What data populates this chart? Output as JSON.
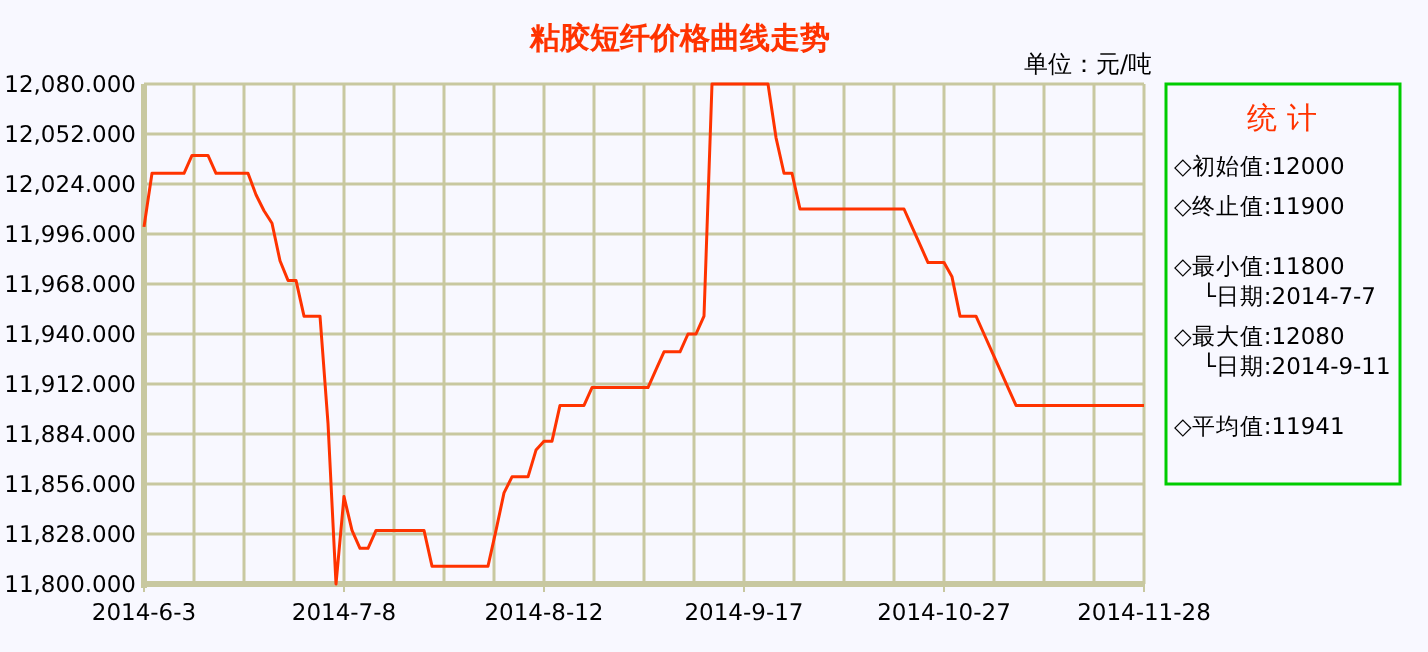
{
  "chart_data": {
    "type": "line",
    "title": "粘胶短纤价格曲线走势",
    "ylabel": "单位：元/吨",
    "categories": [
      "2014-6-3",
      null,
      null,
      null,
      null,
      null,
      null,
      null,
      null,
      null,
      null,
      null,
      null,
      null,
      null,
      null,
      null,
      null,
      null,
      null,
      null,
      null,
      null,
      null,
      null,
      "2014-7-8",
      null,
      null,
      null,
      null,
      null,
      null,
      null,
      null,
      null,
      null,
      null,
      null,
      null,
      null,
      null,
      null,
      null,
      null,
      null,
      null,
      null,
      null,
      null,
      null,
      "2014-8-12",
      null,
      null,
      null,
      null,
      null,
      null,
      null,
      null,
      null,
      null,
      null,
      null,
      null,
      null,
      null,
      null,
      null,
      null,
      null,
      null,
      null,
      null,
      null,
      null,
      "2014-9-17",
      null,
      null,
      null,
      null,
      null,
      null,
      null,
      null,
      null,
      null,
      null,
      null,
      null,
      null,
      null,
      null,
      null,
      null,
      null,
      null,
      null,
      null,
      null,
      null,
      "2014-10-27",
      null,
      null,
      null,
      null,
      null,
      null,
      null,
      null,
      null,
      null,
      null,
      null,
      null,
      null,
      null,
      null,
      null,
      null,
      null,
      null,
      null,
      null,
      null,
      null,
      "2014-11-28"
    ],
    "series": [
      {
        "color": "#ff3300",
        "values": [
          12000,
          12030,
          12030,
          12030,
          12030,
          12030,
          12040,
          12040,
          12040,
          12030,
          12030,
          12030,
          12030,
          12030,
          12018,
          12009,
          12002,
          11981,
          11970,
          11970,
          11950,
          11950,
          11950,
          11890,
          11800,
          11849,
          11830,
          11820,
          11820,
          11830,
          11830,
          11830,
          11830,
          11830,
          11830,
          11830,
          11810,
          11810,
          11810,
          11810,
          11810,
          11810,
          11810,
          11810,
          11830,
          11851,
          11860,
          11860,
          11860,
          11875,
          11880,
          11880,
          11900,
          11900,
          11900,
          11900,
          11910,
          11910,
          11910,
          11910,
          11910,
          11910,
          11910,
          11910,
          11920,
          11930,
          11930,
          11930,
          11940,
          11940,
          11950,
          12080,
          12080,
          12080,
          12080,
          12080,
          12080,
          12080,
          12080,
          12050,
          12030,
          12030,
          12010,
          12010,
          12010,
          12010,
          12010,
          12010,
          12010,
          12010,
          12010,
          12010,
          12010,
          12010,
          12010,
          12010,
          12000,
          11990,
          11980,
          11980,
          11980,
          11972,
          11950,
          11950,
          11950,
          11940,
          11930,
          11920,
          11910,
          11900,
          11900,
          11900,
          11900,
          11900,
          11900,
          11900,
          11900,
          11900,
          11900,
          11900,
          11900,
          11900,
          11900,
          11900,
          11900,
          11900
        ]
      }
    ],
    "ylim": [
      11800,
      12080
    ],
    "yticks": [
      {
        "value": 11800,
        "label": "11,800.000"
      },
      {
        "value": 11828,
        "label": "11,828.000"
      },
      {
        "value": 11856,
        "label": "11,856.000"
      },
      {
        "value": 11884,
        "label": "11,884.000"
      },
      {
        "value": 11912,
        "label": "11,912.000"
      },
      {
        "value": 11940,
        "label": "11,940.000"
      },
      {
        "value": 11968,
        "label": "11,968.000"
      },
      {
        "value": 11996,
        "label": "11,996.000"
      },
      {
        "value": 12024,
        "label": "12,024.000"
      },
      {
        "value": 12052,
        "label": "12,052.000"
      },
      {
        "value": 12080,
        "label": "12,080.000"
      }
    ],
    "grid": true,
    "annotations": [
      "统 计",
      "◇初始值:12000",
      "◇终止值:11900",
      "◇最小值:11800",
      "└日期:2014-7-7",
      "◇最大值:12080",
      "└日期:2014-9-11",
      "◇平均值:11941"
    ]
  }
}
